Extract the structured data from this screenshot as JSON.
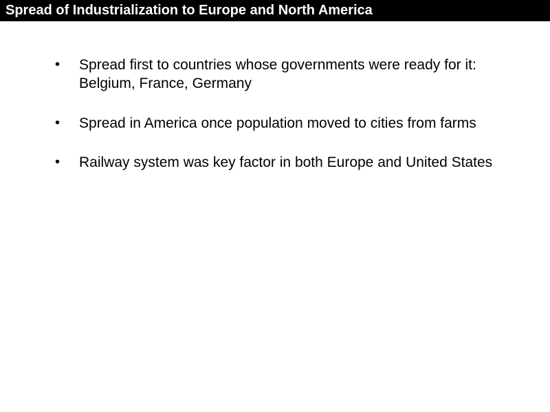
{
  "title": "Spread of Industrialization to Europe and North America",
  "bullets": [
    "Spread first to countries whose governments were ready for it: Belgium, France, Germany",
    "Spread in America once population moved to cities from farms",
    "Railway system was key factor in both Europe and United States"
  ],
  "colors": {
    "title_bg": "#000000",
    "title_fg": "#ffffff",
    "body_bg": "#ffffff",
    "text": "#000000"
  },
  "typography": {
    "title_fontsize": 20,
    "bullet_fontsize": 21,
    "font_family": "Verdana"
  }
}
